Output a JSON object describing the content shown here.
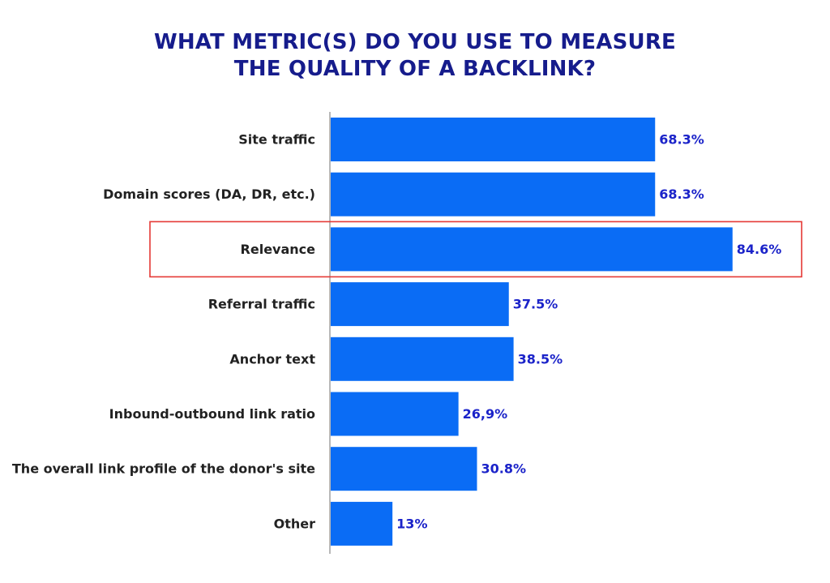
{
  "chart_data": {
    "type": "bar",
    "orientation": "horizontal",
    "title_lines": [
      "WHAT METRIC(S) DO YOU USE TO MEASURE",
      "THE QUALITY OF A BACKLINK?"
    ],
    "categories": [
      "Site traffic",
      "Domain scores (DA, DR, etc.)",
      "Relevance",
      "Referral traffic",
      "Anchor text",
      "Inbound-outbound link ratio",
      "The overall link profile of the donor's site",
      "Other"
    ],
    "values": [
      68.3,
      68.3,
      84.6,
      37.5,
      38.5,
      26.9,
      30.8,
      13
    ],
    "value_labels": [
      "68.3%",
      "68.3%",
      "84.6%",
      "37.5%",
      "38.5%",
      "26,9%",
      "30.8%",
      "13%"
    ],
    "highlighted_category": "Relevance",
    "xlim": [
      0,
      100
    ],
    "grid": false,
    "xlabel": "",
    "ylabel": ""
  },
  "colors": {
    "bar": "#0a6cf5",
    "title": "#161c8c",
    "value_label": "#1b23c9",
    "category_label": "#222222",
    "axis": "#8a8a8a",
    "highlight_box": "#e53935"
  }
}
